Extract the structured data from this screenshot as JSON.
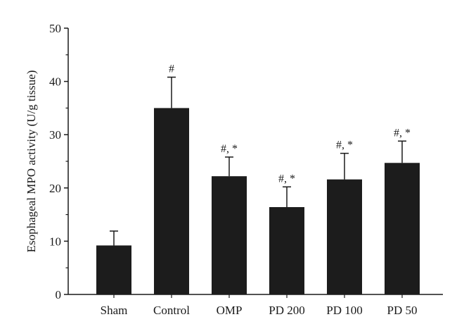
{
  "chart_data": {
    "type": "bar",
    "title": "",
    "xlabel": "",
    "ylabel": "Esophageal MPO activity (U/g tissue)",
    "ylim": [
      0,
      50
    ],
    "yticks": [
      0,
      10,
      20,
      30,
      40,
      50
    ],
    "categories": [
      "Sham",
      "Control",
      "OMP",
      "PD 200",
      "PD 100",
      "PD 50"
    ],
    "values": [
      9.2,
      35.0,
      22.2,
      16.4,
      21.6,
      24.7
    ],
    "errors": [
      2.7,
      5.8,
      3.6,
      3.8,
      4.9,
      4.1
    ],
    "annotations": [
      "",
      "#",
      "#, *",
      "#, *",
      "#, *",
      "#, *"
    ],
    "bar_color": "#1c1c1c",
    "grid": false,
    "legend": "none"
  }
}
